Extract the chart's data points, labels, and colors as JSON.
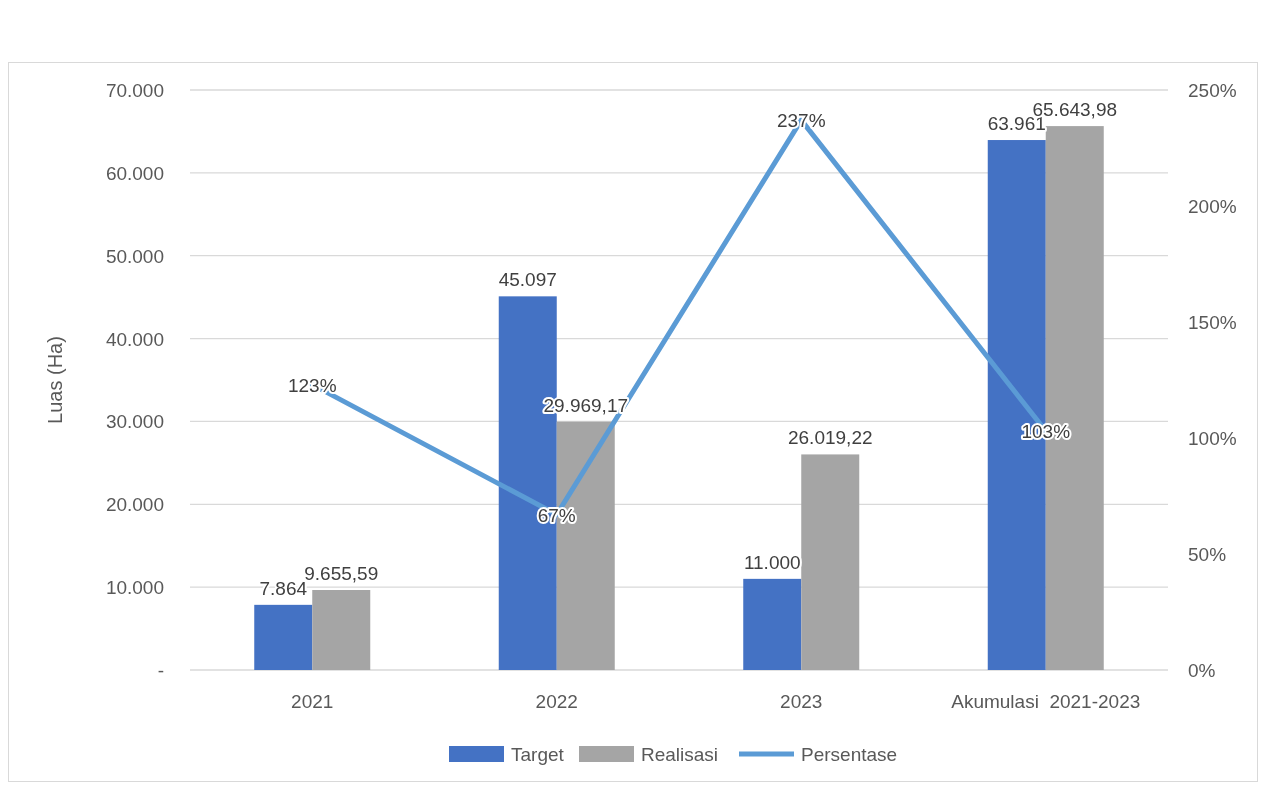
{
  "chart_data": {
    "type": "bar",
    "ylabel": "Luas (Ha)",
    "categories": [
      "2021",
      "2022",
      "2023",
      "Akumulasi  2021-2023"
    ],
    "series": [
      {
        "name": "Target",
        "color": "#4472c4",
        "values": [
          7864,
          45097,
          11000,
          63961
        ],
        "value_labels": [
          "7.864",
          "45.097",
          "11.000",
          "63.961"
        ]
      },
      {
        "name": "Realisasi",
        "color": "#a5a5a5",
        "values": [
          9655.59,
          29969.17,
          26019.22,
          65643.98
        ],
        "value_labels": [
          "9.655,59",
          "29.969,17",
          "26.019,22",
          "65.643,98"
        ]
      },
      {
        "name": "Persentase",
        "type": "line",
        "axis": "y2",
        "color": "#5b9bd5",
        "values": [
          123,
          67,
          237,
          103
        ],
        "value_labels": [
          "123%",
          "67%",
          "237%",
          "103%"
        ]
      }
    ],
    "ylim": [
      0,
      70000
    ],
    "yticks": [
      {
        "value": 0,
        "label": "-"
      },
      {
        "value": 10000,
        "label": "10.000"
      },
      {
        "value": 20000,
        "label": "20.000"
      },
      {
        "value": 30000,
        "label": "30.000"
      },
      {
        "value": 40000,
        "label": "40.000"
      },
      {
        "value": 50000,
        "label": "50.000"
      },
      {
        "value": 60000,
        "label": "60.000"
      },
      {
        "value": 70000,
        "label": "70.000"
      }
    ],
    "y2lim": [
      0,
      250
    ],
    "y2ticks": [
      {
        "value": 0,
        "label": "0%"
      },
      {
        "value": 50,
        "label": "50%"
      },
      {
        "value": 100,
        "label": "100%"
      },
      {
        "value": 150,
        "label": "150%"
      },
      {
        "value": 200,
        "label": "200%"
      },
      {
        "value": 250,
        "label": "250%"
      }
    ],
    "grid": "y",
    "legend": "bottom",
    "marker": "none",
    "line_style": "solid"
  }
}
